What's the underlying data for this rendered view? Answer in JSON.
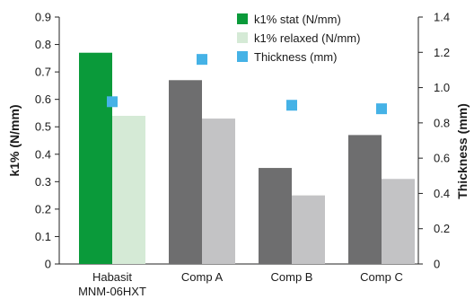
{
  "chart_data": {
    "type": "bar",
    "categories": [
      "Habasit\nMNM-06HXT",
      "Comp A",
      "Comp B",
      "Comp C"
    ],
    "series": [
      {
        "name": "k1% stat (N/mm)",
        "axis": "left",
        "values": [
          0.77,
          0.67,
          0.35,
          0.47
        ],
        "colors": [
          "#0a9a3a",
          "#6e6e6f",
          "#6e6e6f",
          "#6e6e6f"
        ]
      },
      {
        "name": "k1% relaxed (N/mm)",
        "axis": "left",
        "values": [
          0.54,
          0.53,
          0.25,
          0.31
        ],
        "colors": [
          "#d5ead6",
          "#c3c3c5",
          "#c3c3c5",
          "#c3c3c5"
        ]
      },
      {
        "name": "Thickness (mm)",
        "axis": "right",
        "mark": "square",
        "values": [
          0.92,
          1.16,
          0.9,
          0.88
        ],
        "color": "#45b2e6"
      }
    ],
    "ylabel": "k1% (N/mm)",
    "y2label": "Thickness (mm)",
    "ylim": [
      0,
      0.9
    ],
    "y2lim": [
      0,
      1.4
    ],
    "yticks": [
      "0",
      "0.1",
      "0.2",
      "0.3",
      "0.4",
      "0.5",
      "0.6",
      "0.7",
      "0.8",
      "0.9"
    ],
    "y2ticks": [
      "0",
      "0.2",
      "0.4",
      "0.6",
      "0.8",
      "1.0",
      "1.2",
      "1.4"
    ],
    "legend": {
      "position": "top-right",
      "items": [
        {
          "label": "k1% stat (N/mm)",
          "color": "#0a9a3a"
        },
        {
          "label": "k1% relaxed (N/mm)",
          "color": "#d5ead6"
        },
        {
          "label": "Thickness (mm)",
          "color": "#45b2e6"
        }
      ]
    },
    "grid": false
  }
}
